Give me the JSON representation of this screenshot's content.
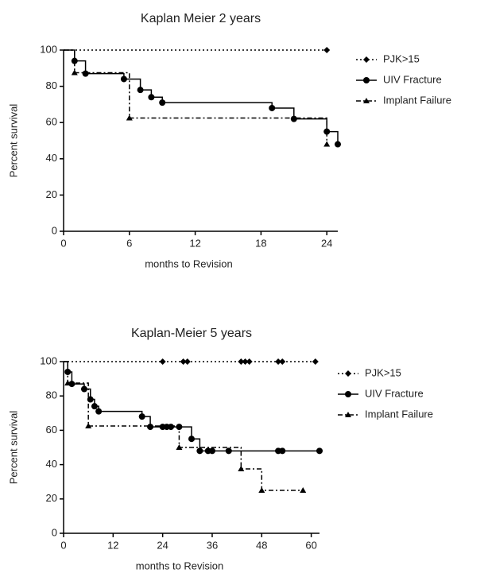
{
  "chart_data": [
    {
      "type": "step",
      "title": "Kaplan Meier  2 years",
      "x_label": "months to Revision",
      "y_label": "Percent survival",
      "xlim": [
        0,
        25
      ],
      "ylim": [
        0,
        100
      ],
      "xticks": [
        0,
        6,
        12,
        18,
        24
      ],
      "yticks": [
        0,
        20,
        40,
        60,
        80,
        100
      ],
      "series": [
        {
          "name": "PJK>15",
          "color": "#000000",
          "marker": "diamond",
          "dash": "dotted",
          "x": [
            0,
            24
          ],
          "values": [
            100,
            100
          ]
        },
        {
          "name": "UIV Fracture",
          "color": "#000000",
          "marker": "circle",
          "dash": "solid",
          "x": [
            0,
            1,
            2,
            5.5,
            7,
            8,
            9,
            19,
            21,
            24,
            25
          ],
          "values": [
            100,
            94,
            87,
            84,
            78,
            74,
            71,
            68,
            62,
            55,
            48
          ]
        },
        {
          "name": "Implant Failure",
          "color": "#000000",
          "marker": "triangle",
          "dash": "dashdot",
          "x": [
            0,
            1,
            6,
            24
          ],
          "values": [
            100,
            87.5,
            62.5,
            48
          ]
        }
      ]
    },
    {
      "type": "step",
      "title": "Kaplan-Meier 5 years",
      "x_label": "months to Revision",
      "y_label": "Percent survival",
      "xlim": [
        0,
        62
      ],
      "ylim": [
        0,
        100
      ],
      "xticks": [
        0,
        12,
        24,
        36,
        48,
        60
      ],
      "yticks": [
        0,
        20,
        40,
        60,
        80,
        100
      ],
      "series": [
        {
          "name": "PJK>15",
          "color": "#000000",
          "marker": "diamond",
          "dash": "dotted",
          "x": [
            0,
            24,
            29,
            30,
            43,
            44,
            45,
            52,
            53,
            61
          ],
          "values": [
            100,
            100,
            100,
            100,
            100,
            100,
            100,
            100,
            100,
            100
          ]
        },
        {
          "name": "UIV Fracture",
          "color": "#000000",
          "marker": "circle",
          "dash": "solid",
          "x": [
            0,
            1,
            2,
            5,
            6.5,
            7.5,
            8.5,
            19,
            21,
            24,
            25,
            26,
            28,
            31,
            33,
            35,
            36,
            40,
            52,
            53,
            62
          ],
          "values": [
            100,
            94,
            87,
            84,
            78,
            74,
            71,
            68,
            62,
            62,
            62,
            62,
            62,
            55,
            48,
            48,
            48,
            48,
            48,
            48,
            48
          ]
        },
        {
          "name": "Implant Failure",
          "color": "#000000",
          "marker": "triangle",
          "dash": "dashdot",
          "x": [
            0,
            1,
            6,
            28,
            43,
            48,
            58
          ],
          "values": [
            100,
            87.5,
            62.5,
            50,
            37.5,
            25,
            25
          ]
        }
      ]
    }
  ]
}
